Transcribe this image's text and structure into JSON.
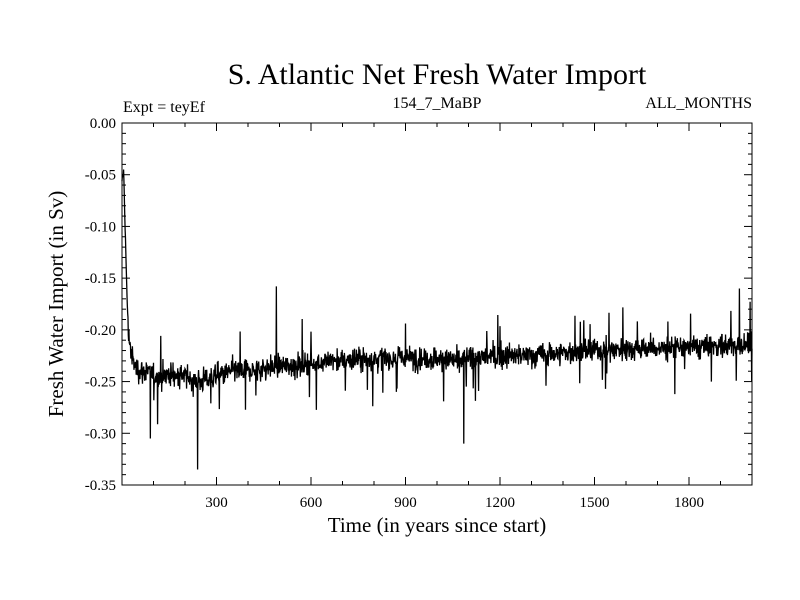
{
  "chart_data": {
    "type": "line",
    "title": "S. Atlantic Net Fresh Water Import",
    "subtitle_left": "Expt = teyEf",
    "subtitle_center": "154_7_MaBP",
    "subtitle_right": "ALL_MONTHS",
    "xlabel": "Time (in years since start)",
    "ylabel": "Fresh Water Import (in Sv)",
    "xlim": [
      0,
      2000
    ],
    "ylim": [
      -0.35,
      0.0
    ],
    "xticks": [
      300,
      600,
      900,
      1200,
      1500,
      1800
    ],
    "xtick_labels": [
      "300",
      "600",
      "900",
      "1200",
      "1500",
      "1800"
    ],
    "yticks": [
      0.0,
      -0.05,
      -0.1,
      -0.15,
      -0.2,
      -0.25,
      -0.3,
      -0.35
    ],
    "ytick_labels": [
      "0.00",
      "-0.05",
      "-0.10",
      "-0.15",
      "-0.20",
      "-0.25",
      "-0.30",
      "-0.35"
    ],
    "series": [
      {
        "name": "Net fresh water import",
        "color": "#000000",
        "x": [
          0,
          5,
          10,
          15,
          20,
          30,
          40,
          60,
          80,
          100,
          150,
          200,
          240,
          300,
          350,
          400,
          450,
          500,
          600,
          650,
          700,
          750,
          800,
          900,
          1000,
          1080,
          1100,
          1200,
          1300,
          1400,
          1500,
          1600,
          1700,
          1800,
          1900,
          2000
        ],
        "y": [
          -0.06,
          -0.045,
          -0.1,
          -0.16,
          -0.2,
          -0.225,
          -0.235,
          -0.24,
          -0.24,
          -0.245,
          -0.243,
          -0.245,
          -0.25,
          -0.245,
          -0.24,
          -0.24,
          -0.237,
          -0.235,
          -0.233,
          -0.23,
          -0.23,
          -0.228,
          -0.228,
          -0.227,
          -0.228,
          -0.23,
          -0.227,
          -0.225,
          -0.225,
          -0.222,
          -0.22,
          -0.218,
          -0.218,
          -0.217,
          -0.215,
          -0.215
        ],
        "notable_extremes": [
          {
            "x": 5,
            "y": -0.045
          },
          {
            "x": 240,
            "y": -0.335
          },
          {
            "x": 90,
            "y": -0.305
          },
          {
            "x": 1085,
            "y": -0.31
          },
          {
            "x": 490,
            "y": -0.158
          },
          {
            "x": 1960,
            "y": -0.16
          }
        ]
      }
    ]
  }
}
